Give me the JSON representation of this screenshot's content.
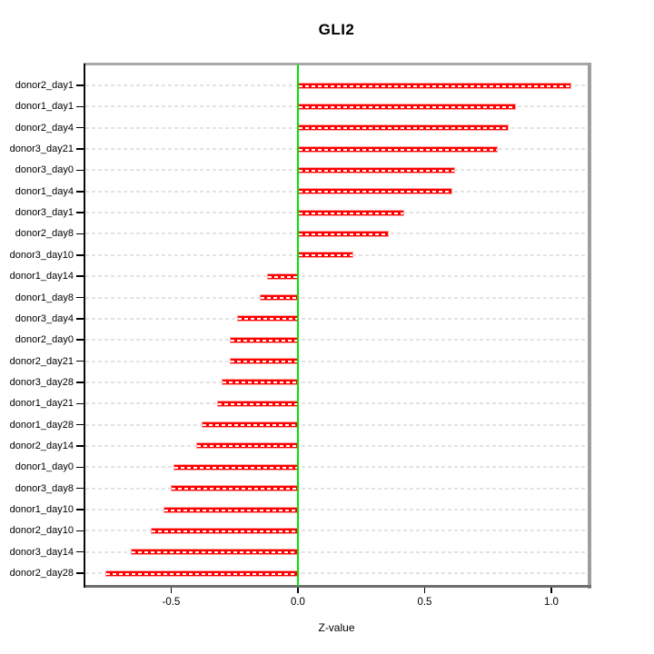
{
  "title": "GLI2",
  "chart_data": {
    "type": "bar",
    "orientation": "horizontal",
    "title": "GLI2",
    "xlabel": "Z-value",
    "categories": [
      "donor2_day1",
      "donor1_day1",
      "donor2_day4",
      "donor3_day21",
      "donor3_day0",
      "donor1_day4",
      "donor3_day1",
      "donor2_day8",
      "donor3_day10",
      "donor1_day14",
      "donor1_day8",
      "donor3_day4",
      "donor2_day0",
      "donor2_day21",
      "donor3_day28",
      "donor1_day21",
      "donor1_day28",
      "donor2_day14",
      "donor1_day0",
      "donor3_day8",
      "donor1_day10",
      "donor2_day10",
      "donor3_day14",
      "donor2_day28"
    ],
    "values": [
      1.08,
      0.86,
      0.83,
      0.79,
      0.62,
      0.61,
      0.42,
      0.36,
      0.22,
      -0.12,
      -0.15,
      -0.24,
      -0.27,
      -0.27,
      -0.3,
      -0.32,
      -0.38,
      -0.4,
      -0.49,
      -0.5,
      -0.53,
      -0.58,
      -0.66,
      -0.76
    ],
    "xlim": [
      -0.842,
      1.147
    ],
    "x_ticks": [
      -0.5,
      0.0,
      0.5,
      1.0
    ],
    "x_tick_labels": [
      "-0.5",
      "0.0",
      "0.5",
      "1.0"
    ],
    "zero_line_value": 0,
    "grid": "horizontal dashed per category",
    "legend": "none",
    "colors": {
      "bar_fill": "#FF0000",
      "bar_edge": "#FFA0A0",
      "bar_center_dash": "#FFFFFF",
      "zero_line": "#00E300",
      "gridline": "#E3E3E3",
      "frame_top": "#A8A8A8",
      "frame_right": "#9E9E9E",
      "frame_bottom": "#6E6E6E",
      "frame_left": "#0A0A0A",
      "text": "#000000"
    }
  }
}
